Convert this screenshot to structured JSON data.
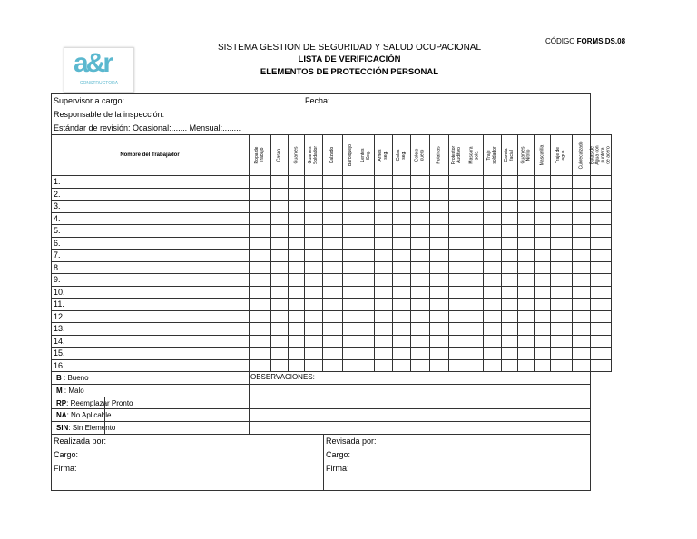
{
  "header": {
    "system": "SISTEMA GESTION DE SEGURIDAD Y SALUD OCUPACIONAL",
    "title": "LISTA DE  VERIFICACIÓN",
    "subtitle": "ELEMENTOS DE PROTECCIÓN PERSONAL",
    "code_label": "CÓDIGO ",
    "code_value": "FORMS.DS.08",
    "logo_text": "a&r",
    "logo_sub": "CONSTRUCTORA"
  },
  "info": {
    "supervisor": "Supervisor a cargo:",
    "fecha": "Fecha:",
    "responsable": "Responsable de la inspección:",
    "estandar": "Estándar de revisión: Ocasional:.......    Mensual:........"
  },
  "table": {
    "name_header": "Nombre del Trabajador",
    "columns": [
      "Ropa de Trabajo",
      "Casco",
      "Guantes",
      "Guantes Soldador",
      "Calzado",
      "Barbiquejo",
      "Lentes Seg.",
      "Arnes seg.",
      "Colas seg.",
      "Coleto cuero",
      "Polainas",
      "Protector Auditivo",
      "Mascara sold.",
      "Traje soldador",
      "Careta facial",
      "Guantes Nitrilo",
      "Mascarilla",
      "Traje de agua",
      "Cubrecalzado",
      "Botas de Agua con puntera de acero"
    ],
    "rows": [
      "1.",
      "2.",
      "3.",
      "4.",
      "5.",
      "6.",
      "7.",
      "8.",
      "9.",
      "10.",
      "11.",
      "12.",
      "13.",
      "14.",
      "15.",
      "16."
    ]
  },
  "legend": [
    {
      "code": "B",
      "text": "  : Bueno"
    },
    {
      "code": "M",
      "text": "  : Malo"
    },
    {
      "code": "RP",
      "text": ": Reemplazar Pronto"
    },
    {
      "code": "NA",
      "text": ": No Aplicable"
    },
    {
      "code": "SIN",
      "text": ": Sin Elemento"
    }
  ],
  "observaciones": "OBSERVACIONES:",
  "signatures": {
    "left": {
      "realizada": "Realizada por:",
      "cargo": "Cargo:",
      "firma": "Firma:"
    },
    "right": {
      "revisada": "Revisada por:",
      "cargo": "Cargo:",
      "firma": "Firma:"
    }
  },
  "colors": {
    "logo": "#5bb8cf",
    "border": "#333333"
  }
}
